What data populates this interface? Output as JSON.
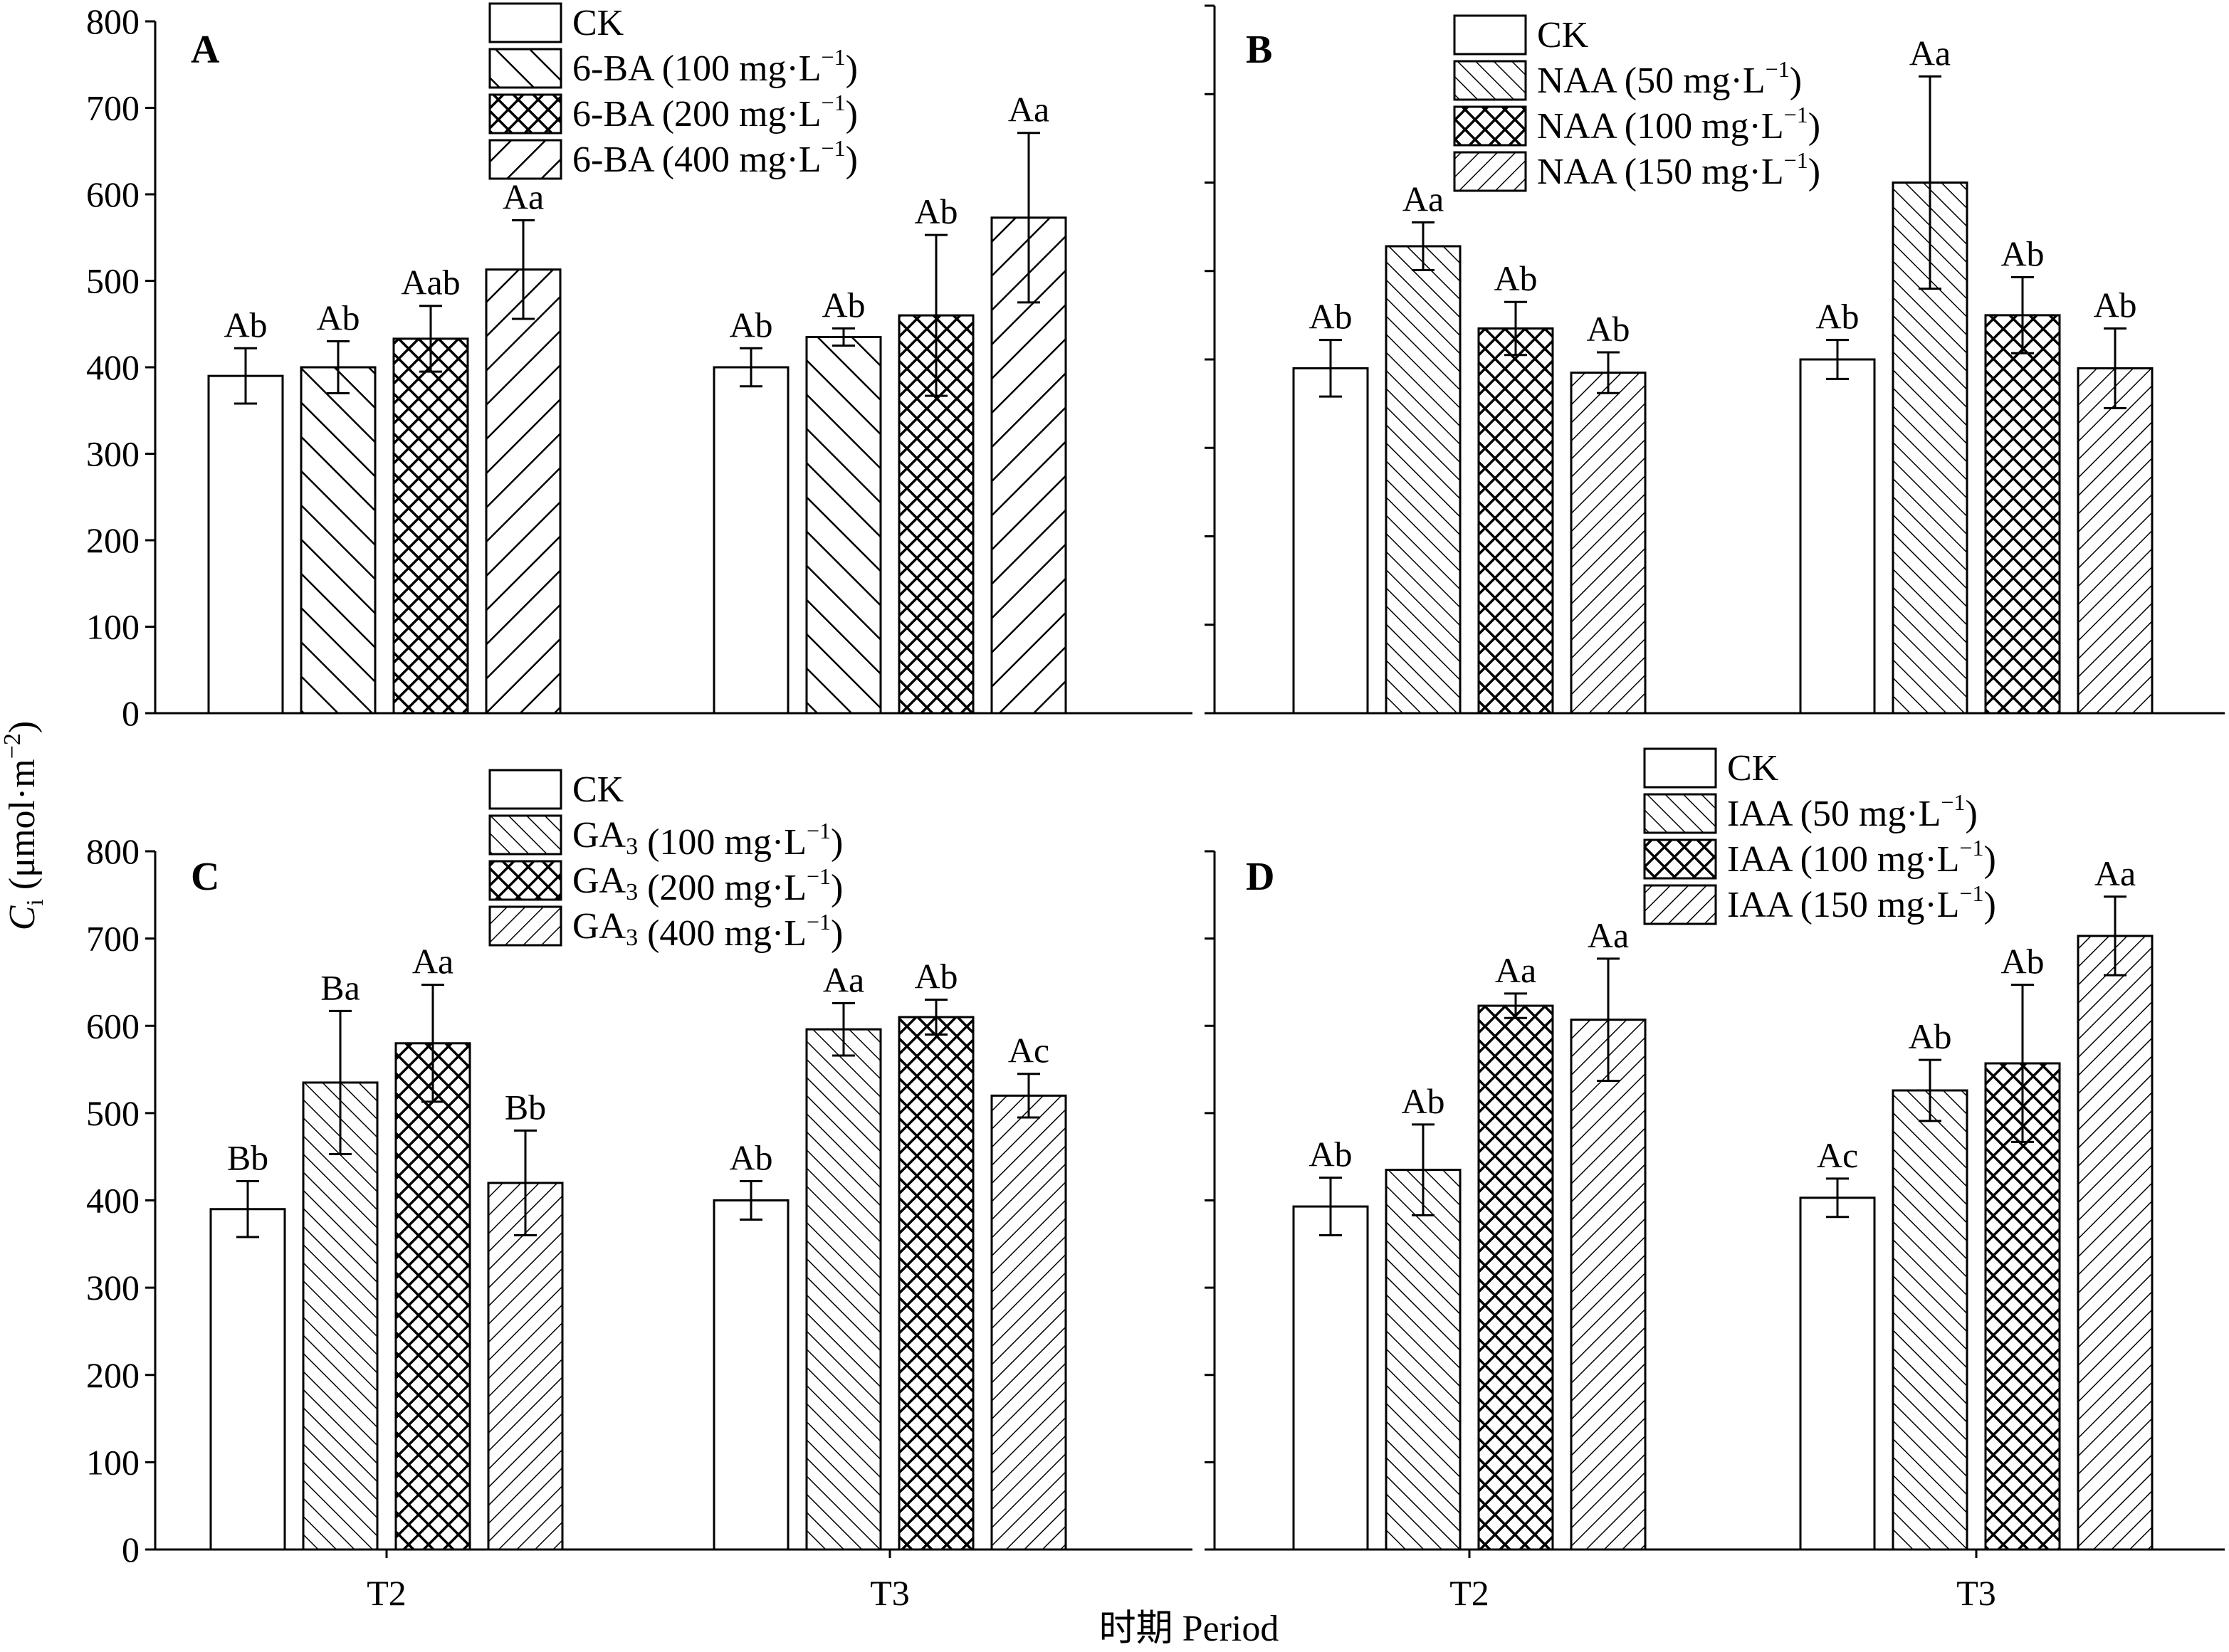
{
  "figure": {
    "ylabel_main": "C",
    "ylabel_sub": "i",
    "ylabel_rest": " (μmol·m",
    "ylabel_sup": "−2",
    "ylabel_close": ")",
    "xlabel": "时期 Period",
    "colors": {
      "ink": "#000000",
      "bar_fill": "#ffffff"
    }
  },
  "chart_data": [
    {
      "panel": "A",
      "type": "bar",
      "categories": [
        "T2",
        "T3"
      ],
      "ylim": [
        0,
        800
      ],
      "yticks": [
        0,
        100,
        200,
        300,
        400,
        500,
        600,
        700,
        800
      ],
      "show_tick_labels": true,
      "legend_position": "top-center",
      "series": [
        {
          "pattern": "none",
          "legend": {
            "main": "CK",
            "sub": "",
            "rest": "",
            "sup": "",
            "close": ""
          },
          "values": [
            390,
            400
          ],
          "errors": [
            32,
            22
          ],
          "labels": [
            "Ab",
            "Ab"
          ]
        },
        {
          "pattern": "diag-fwd",
          "legend": {
            "main": "6-BA",
            "sub": "",
            "rest": " (100 mg·L",
            "sup": "−1",
            "close": ")"
          },
          "values": [
            400,
            435
          ],
          "errors": [
            30,
            10
          ],
          "labels": [
            "Ab",
            "Ab"
          ]
        },
        {
          "pattern": "cross",
          "legend": {
            "main": "6-BA",
            "sub": "",
            "rest": " (200 mg·L",
            "sup": "−1",
            "close": ")"
          },
          "values": [
            433,
            460
          ],
          "errors": [
            38,
            93
          ],
          "labels": [
            "Aab",
            "Ab"
          ]
        },
        {
          "pattern": "diag-back",
          "legend": {
            "main": "6-BA",
            "sub": "",
            "rest": " (400 mg·L",
            "sup": "−1",
            "close": ")"
          },
          "values": [
            513,
            573
          ],
          "errors": [
            57,
            98
          ],
          "labels": [
            "Aa",
            "Aa"
          ]
        }
      ]
    },
    {
      "panel": "B",
      "type": "bar",
      "categories": [
        "T2",
        "T3"
      ],
      "ylim": [
        0,
        800
      ],
      "yticks": [
        0,
        100,
        200,
        300,
        400,
        500,
        600,
        700,
        800
      ],
      "show_tick_labels": false,
      "legend_position": "top-center",
      "series": [
        {
          "pattern": "none",
          "legend": {
            "main": "CK",
            "sub": "",
            "rest": "",
            "sup": "",
            "close": ""
          },
          "values": [
            390,
            400
          ],
          "errors": [
            32,
            22
          ],
          "labels": [
            "Ab",
            "Ab"
          ]
        },
        {
          "pattern": "dense-fwd",
          "legend": {
            "main": "NAA",
            "sub": "",
            "rest": " (50 mg·L",
            "sup": "−1",
            "close": ")"
          },
          "values": [
            528,
            600
          ],
          "errors": [
            27,
            120
          ],
          "labels": [
            "Aa",
            "Aa"
          ]
        },
        {
          "pattern": "cross",
          "legend": {
            "main": "NAA",
            "sub": "",
            "rest": " (100 mg·L",
            "sup": "−1",
            "close": ")"
          },
          "values": [
            435,
            450
          ],
          "errors": [
            30,
            43
          ],
          "labels": [
            "Ab",
            "Ab"
          ]
        },
        {
          "pattern": "dense-back",
          "legend": {
            "main": "NAA",
            "sub": "",
            "rest": " (150 mg·L",
            "sup": "−1",
            "close": ")"
          },
          "values": [
            385,
            390
          ],
          "errors": [
            23,
            45
          ],
          "labels": [
            "Ab",
            "Ab"
          ]
        }
      ]
    },
    {
      "panel": "C",
      "type": "bar",
      "categories": [
        "T2",
        "T3"
      ],
      "ylim": [
        0,
        800
      ],
      "yticks": [
        0,
        100,
        200,
        300,
        400,
        500,
        600,
        700,
        800
      ],
      "show_tick_labels": true,
      "legend_position": "top-center",
      "series": [
        {
          "pattern": "none",
          "legend": {
            "main": "CK",
            "sub": "",
            "rest": "",
            "sup": "",
            "close": ""
          },
          "values": [
            390,
            400
          ],
          "errors": [
            32,
            22
          ],
          "labels": [
            "Bb",
            "Ab"
          ]
        },
        {
          "pattern": "dense-fwd",
          "legend": {
            "main": "GA",
            "sub": "3",
            "rest": " (100 mg·L",
            "sup": "−1",
            "close": ")"
          },
          "values": [
            535,
            596
          ],
          "errors": [
            82,
            30
          ],
          "labels": [
            "Ba",
            "Aa"
          ]
        },
        {
          "pattern": "cross",
          "legend": {
            "main": "GA",
            "sub": "3",
            "rest": " (200 mg·L",
            "sup": "−1",
            "close": ")"
          },
          "values": [
            580,
            610
          ],
          "errors": [
            67,
            20
          ],
          "labels": [
            "Aa",
            "Ab"
          ]
        },
        {
          "pattern": "dense-back",
          "legend": {
            "main": "GA",
            "sub": "3",
            "rest": " (400 mg·L",
            "sup": "−1",
            "close": ")"
          },
          "values": [
            420,
            520
          ],
          "errors": [
            60,
            25
          ],
          "labels": [
            "Bb",
            "Ac"
          ]
        }
      ]
    },
    {
      "panel": "D",
      "type": "bar",
      "categories": [
        "T2",
        "T3"
      ],
      "ylim": [
        0,
        800
      ],
      "yticks": [
        0,
        100,
        200,
        300,
        400,
        500,
        600,
        700,
        800
      ],
      "show_tick_labels": false,
      "legend_position": "top-right",
      "series": [
        {
          "pattern": "none",
          "legend": {
            "main": "CK",
            "sub": "",
            "rest": "",
            "sup": "",
            "close": ""
          },
          "values": [
            393,
            403
          ],
          "errors": [
            33,
            22
          ],
          "labels": [
            "Ab",
            "Ac"
          ]
        },
        {
          "pattern": "dense-fwd",
          "legend": {
            "main": "IAA",
            "sub": "",
            "rest": " (50 mg·L",
            "sup": "−1",
            "close": ")"
          },
          "values": [
            435,
            526
          ],
          "errors": [
            52,
            35
          ],
          "labels": [
            "Ab",
            "Ab"
          ]
        },
        {
          "pattern": "cross",
          "legend": {
            "main": "IAA",
            "sub": "",
            "rest": " (100 mg·L",
            "sup": "−1",
            "close": ")"
          },
          "values": [
            623,
            557
          ],
          "errors": [
            14,
            90
          ],
          "labels": [
            "Aa",
            "Ab"
          ]
        },
        {
          "pattern": "dense-back",
          "legend": {
            "main": "IAA",
            "sub": "",
            "rest": " (150 mg·L",
            "sup": "−1",
            "close": ")"
          },
          "values": [
            607,
            703
          ],
          "errors": [
            70,
            45
          ],
          "labels": [
            "Aa",
            "Aa"
          ]
        }
      ]
    }
  ]
}
